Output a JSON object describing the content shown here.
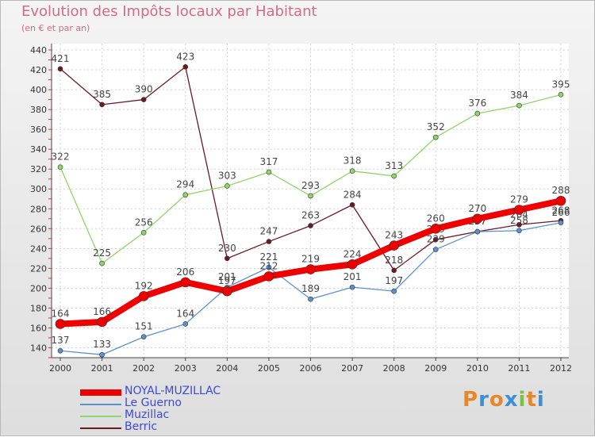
{
  "chart_data": {
    "type": "line",
    "title": "Evolution des Impôts locaux par Habitant",
    "subtitle": "(en € et par an)",
    "x": [
      "2000",
      "2001",
      "2002",
      "2003",
      "2004",
      "2005",
      "2006",
      "2007",
      "2008",
      "2009",
      "2010",
      "2011",
      "2012"
    ],
    "ylim": [
      130,
      440
    ],
    "yticks": [
      140,
      160,
      180,
      200,
      220,
      240,
      260,
      280,
      300,
      320,
      340,
      360,
      380,
      400,
      420,
      440
    ],
    "grid": true,
    "legend_position": "bottom-left",
    "series": [
      {
        "name": "Berric",
        "color": "#6b1a24",
        "values": [
          421,
          385,
          390,
          423,
          230,
          247,
          263,
          284,
          218,
          249,
          257,
          264,
          268
        ],
        "labels": [
          "421",
          "385",
          "390",
          "423",
          "230",
          "247",
          "263",
          "284",
          "218",
          "249",
          "257",
          "264",
          "268"
        ]
      },
      {
        "name": "Muzillac",
        "color": "#8fd66a",
        "values": [
          322,
          225,
          256,
          294,
          303,
          317,
          293,
          318,
          313,
          352,
          376,
          384,
          395
        ],
        "labels": [
          "322",
          "225",
          "256",
          "294",
          "303",
          "317",
          "293",
          "318",
          "313",
          "352",
          "376",
          "384",
          "395"
        ]
      },
      {
        "name": "Le Guerno",
        "color": "#5b93c9",
        "values": [
          137,
          133,
          151,
          164,
          201,
          221,
          189,
          201,
          197,
          239,
          257,
          258,
          266
        ],
        "labels": [
          "137",
          "133",
          "151",
          "164",
          "201",
          "221",
          "189",
          "201",
          "197",
          "239",
          "257",
          "258",
          "266"
        ]
      },
      {
        "name": "NOYAL-MUZILLAC",
        "color": "#ee0000",
        "values": [
          164,
          166,
          192,
          206,
          197,
          212,
          219,
          224,
          243,
          260,
          270,
          279,
          288
        ],
        "labels": [
          "164",
          "166",
          "192",
          "206",
          "197",
          "212",
          "219",
          "224",
          "243",
          "260",
          "270",
          "279",
          "288"
        ]
      }
    ]
  },
  "legend": [
    "NOYAL-MUZILLAC",
    "Le Guerno",
    "Muzillac",
    "Berric"
  ],
  "brand": {
    "text": "Proxiti"
  }
}
